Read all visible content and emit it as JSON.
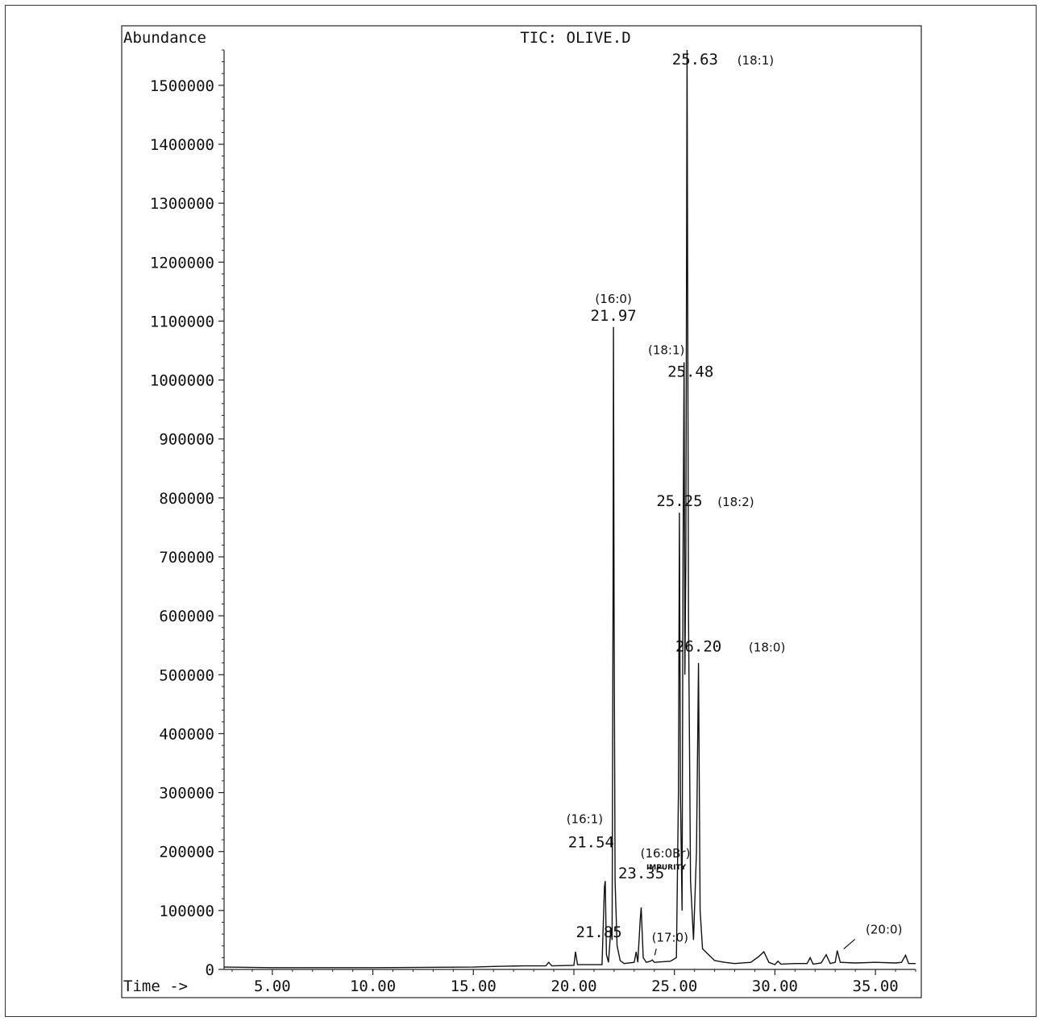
{
  "chart_data": {
    "type": "line",
    "title": "TIC: OLIVE.D",
    "ylabel": "Abundance",
    "xlabel": "Time ->",
    "xlim": [
      2.6,
      37.0
    ],
    "ylim": [
      0,
      1560000
    ],
    "x_ticks": [
      {
        "value": 5,
        "label": "5.00"
      },
      {
        "value": 10,
        "label": "10.00"
      },
      {
        "value": 15,
        "label": "15.00"
      },
      {
        "value": 20,
        "label": "20.00"
      },
      {
        "value": 25,
        "label": "25.00"
      },
      {
        "value": 30,
        "label": "30.00"
      },
      {
        "value": 35,
        "label": "35.00"
      }
    ],
    "y_ticks": [
      {
        "value": 0,
        "label": "0"
      },
      {
        "value": 100000,
        "label": "100000"
      },
      {
        "value": 200000,
        "label": "200000"
      },
      {
        "value": 300000,
        "label": "300000"
      },
      {
        "value": 400000,
        "label": "400000"
      },
      {
        "value": 500000,
        "label": "500000"
      },
      {
        "value": 600000,
        "label": "600000"
      },
      {
        "value": 700000,
        "label": "700000"
      },
      {
        "value": 800000,
        "label": "800000"
      },
      {
        "value": 900000,
        "label": "900000"
      },
      {
        "value": 1000000,
        "label": "1000000"
      },
      {
        "value": 1100000,
        "label": "1100000"
      },
      {
        "value": 1200000,
        "label": "1200000"
      },
      {
        "value": 1300000,
        "label": "1300000"
      },
      {
        "value": 1400000,
        "label": "1400000"
      },
      {
        "value": 1500000,
        "label": "1500000"
      }
    ],
    "series": [
      {
        "points": [
          [
            2.6,
            4000
          ],
          [
            5.0,
            3000
          ],
          [
            10.0,
            3000
          ],
          [
            15.0,
            4000
          ],
          [
            16.0,
            5000
          ],
          [
            17.5,
            6000
          ],
          [
            18.6,
            6000
          ],
          [
            18.75,
            12000
          ],
          [
            18.9,
            6000
          ],
          [
            20.0,
            7000
          ],
          [
            20.08,
            30000
          ],
          [
            20.18,
            8000
          ],
          [
            21.4,
            8000
          ],
          [
            21.52,
            140000
          ],
          [
            21.56,
            150000
          ],
          [
            21.62,
            25000
          ],
          [
            21.72,
            12000
          ],
          [
            21.82,
            60000
          ],
          [
            21.85,
            70000
          ],
          [
            21.9,
            50000
          ],
          [
            21.95,
            650000
          ],
          [
            21.97,
            1090000
          ],
          [
            22.0,
            600000
          ],
          [
            22.05,
            150000
          ],
          [
            22.15,
            40000
          ],
          [
            22.3,
            15000
          ],
          [
            22.5,
            10000
          ],
          [
            23.0,
            12000
          ],
          [
            23.1,
            30000
          ],
          [
            23.18,
            12000
          ],
          [
            23.3,
            85000
          ],
          [
            23.35,
            105000
          ],
          [
            23.45,
            20000
          ],
          [
            23.6,
            12000
          ],
          [
            23.8,
            14000
          ],
          [
            23.9,
            16000
          ],
          [
            24.0,
            12000
          ],
          [
            24.8,
            14000
          ],
          [
            25.1,
            20000
          ],
          [
            25.2,
            300000
          ],
          [
            25.25,
            775000
          ],
          [
            25.3,
            300000
          ],
          [
            25.38,
            100000
          ],
          [
            25.43,
            700000
          ],
          [
            25.48,
            1030000
          ],
          [
            25.52,
            500000
          ],
          [
            25.57,
            700000
          ],
          [
            25.63,
            1560000
          ],
          [
            25.7,
            600000
          ],
          [
            25.8,
            150000
          ],
          [
            25.95,
            50000
          ],
          [
            26.1,
            200000
          ],
          [
            26.2,
            520000
          ],
          [
            26.28,
            100000
          ],
          [
            26.4,
            35000
          ],
          [
            26.7,
            25000
          ],
          [
            27.0,
            15000
          ],
          [
            27.5,
            12000
          ],
          [
            28.0,
            10000
          ],
          [
            28.8,
            12000
          ],
          [
            29.2,
            22000
          ],
          [
            29.45,
            30000
          ],
          [
            29.7,
            12000
          ],
          [
            30.0,
            8000
          ],
          [
            30.15,
            14000
          ],
          [
            30.3,
            9000
          ],
          [
            31.0,
            10000
          ],
          [
            31.6,
            10000
          ],
          [
            31.75,
            20000
          ],
          [
            31.9,
            9000
          ],
          [
            32.3,
            11000
          ],
          [
            32.55,
            25000
          ],
          [
            32.75,
            10000
          ],
          [
            33.0,
            12000
          ],
          [
            33.1,
            32000
          ],
          [
            33.25,
            12000
          ],
          [
            34.0,
            11000
          ],
          [
            35.0,
            12000
          ],
          [
            36.0,
            11000
          ],
          [
            36.3,
            12000
          ],
          [
            36.5,
            24000
          ],
          [
            36.65,
            10000
          ],
          [
            37.0,
            10000
          ]
        ]
      }
    ],
    "annotations": [
      {
        "x": 21.97,
        "y": 1090000,
        "label": "21.97",
        "note": "(16:0)"
      },
      {
        "x": 25.63,
        "y": 1560000,
        "label": "25.63",
        "note": "(18:1)"
      },
      {
        "x": 25.48,
        "y": 1030000,
        "label": "25.48",
        "note": "(18:1)"
      },
      {
        "x": 25.25,
        "y": 775000,
        "label": "25.25",
        "note": "(18:2)"
      },
      {
        "x": 26.2,
        "y": 520000,
        "label": "26.20",
        "note": "(18:0)"
      },
      {
        "x": 21.54,
        "y": 150000,
        "label": "21.54",
        "note": "(16:1)"
      },
      {
        "x": 23.35,
        "y": 105000,
        "label": "23.35",
        "note": "(16:0Br)"
      },
      {
        "x": 23.35,
        "y": 105000,
        "label": "",
        "note": "IMPURITY"
      },
      {
        "x": 21.85,
        "y": 70000,
        "label": "21.85",
        "note": ""
      },
      {
        "x": 23.9,
        "y": 16000,
        "label": "",
        "note": "(17:0)"
      },
      {
        "x": 33.1,
        "y": 32000,
        "label": "",
        "note": "(20:0)"
      }
    ]
  }
}
